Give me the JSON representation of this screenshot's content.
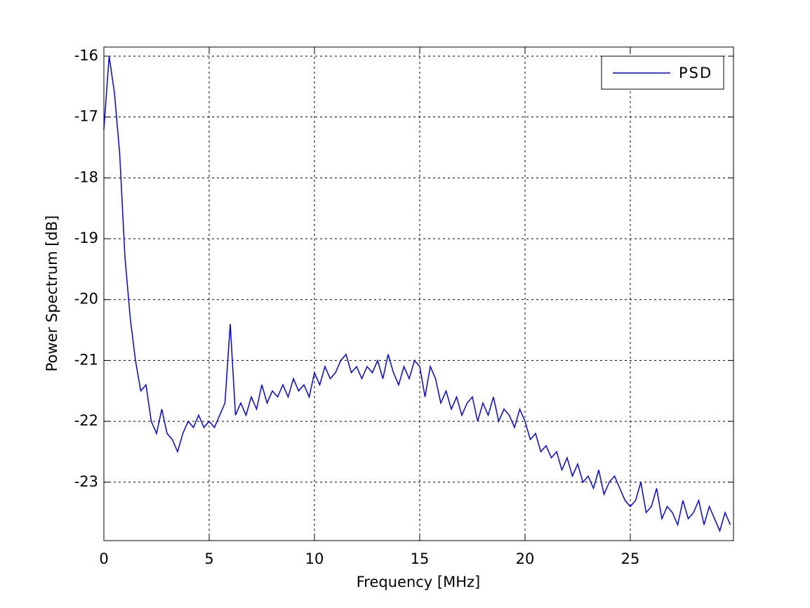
{
  "chart_data": {
    "type": "line",
    "xlabel": "Frequency [MHz]",
    "ylabel": "Power Spectrum [dB]",
    "x": [
      0,
      0.25,
      0.5,
      0.75,
      1,
      1.25,
      1.5,
      1.75,
      2,
      2.25,
      2.5,
      2.75,
      3,
      3.25,
      3.5,
      3.75,
      4,
      4.25,
      4.5,
      4.75,
      5,
      5.25,
      5.5,
      5.75,
      6,
      6.25,
      6.5,
      6.75,
      7,
      7.25,
      7.5,
      7.75,
      8,
      8.25,
      8.5,
      8.75,
      9,
      9.25,
      9.5,
      9.75,
      10,
      10.25,
      10.5,
      10.75,
      11,
      11.25,
      11.5,
      11.75,
      12,
      12.25,
      12.5,
      12.75,
      13,
      13.25,
      13.5,
      13.75,
      14,
      14.25,
      14.5,
      14.75,
      15,
      15.25,
      15.5,
      15.75,
      16,
      16.25,
      16.5,
      16.75,
      17,
      17.25,
      17.5,
      17.75,
      18,
      18.25,
      18.5,
      18.75,
      19,
      19.25,
      19.5,
      19.75,
      20,
      20.25,
      20.5,
      20.75,
      21,
      21.25,
      21.5,
      21.75,
      22,
      22.25,
      22.5,
      22.75,
      23,
      23.25,
      23.5,
      23.75,
      24,
      24.25,
      24.5,
      24.75,
      25,
      25.25,
      25.5,
      25.75,
      26,
      26.25,
      26.5,
      26.75,
      27,
      27.25,
      27.5,
      27.75,
      28,
      28.25,
      28.5,
      28.75,
      29,
      29.25,
      29.5,
      29.75
    ],
    "series": [
      {
        "name": "PSD",
        "color": "#0000ff",
        "values": [
          -17.2,
          -16.0,
          -16.6,
          -17.6,
          -19.3,
          -20.3,
          -21.0,
          -21.5,
          -21.4,
          -22.0,
          -22.2,
          -21.8,
          -22.2,
          -22.3,
          -22.5,
          -22.2,
          -22.0,
          -22.1,
          -21.9,
          -22.1,
          -22.0,
          -22.1,
          -21.9,
          -21.7,
          -20.4,
          -21.9,
          -21.7,
          -21.9,
          -21.6,
          -21.8,
          -21.4,
          -21.7,
          -21.5,
          -21.6,
          -21.4,
          -21.6,
          -21.3,
          -21.5,
          -21.4,
          -21.6,
          -21.2,
          -21.4,
          -21.1,
          -21.3,
          -21.2,
          -21.0,
          -20.9,
          -21.2,
          -21.1,
          -21.3,
          -21.1,
          -21.2,
          -21.0,
          -21.3,
          -20.9,
          -21.2,
          -21.4,
          -21.1,
          -21.3,
          -21.0,
          -21.1,
          -21.6,
          -21.1,
          -21.3,
          -21.7,
          -21.5,
          -21.8,
          -21.6,
          -21.9,
          -21.7,
          -21.6,
          -22.0,
          -21.7,
          -21.9,
          -21.6,
          -22.0,
          -21.8,
          -21.9,
          -22.1,
          -21.8,
          -22.0,
          -22.3,
          -22.2,
          -22.5,
          -22.4,
          -22.6,
          -22.5,
          -22.8,
          -22.6,
          -22.9,
          -22.7,
          -23.0,
          -22.9,
          -23.1,
          -22.8,
          -23.2,
          -23.0,
          -22.9,
          -23.1,
          -23.3,
          -23.4,
          -23.3,
          -23.0,
          -23.5,
          -23.4,
          -23.1,
          -23.6,
          -23.4,
          -23.5,
          -23.7,
          -23.3,
          -23.6,
          -23.5,
          -23.3,
          -23.7,
          -23.4,
          -23.6,
          -23.8,
          -23.5,
          -23.7
        ]
      }
    ],
    "xlim": [
      0,
      29.9
    ],
    "ylim": [
      -23.96,
      -15.85
    ],
    "xticks": [
      0,
      5,
      10,
      15,
      20,
      25
    ],
    "yticks": [
      -16,
      -17,
      -18,
      -19,
      -20,
      -21,
      -22,
      -23
    ],
    "grid": true,
    "legend": "upper right"
  }
}
